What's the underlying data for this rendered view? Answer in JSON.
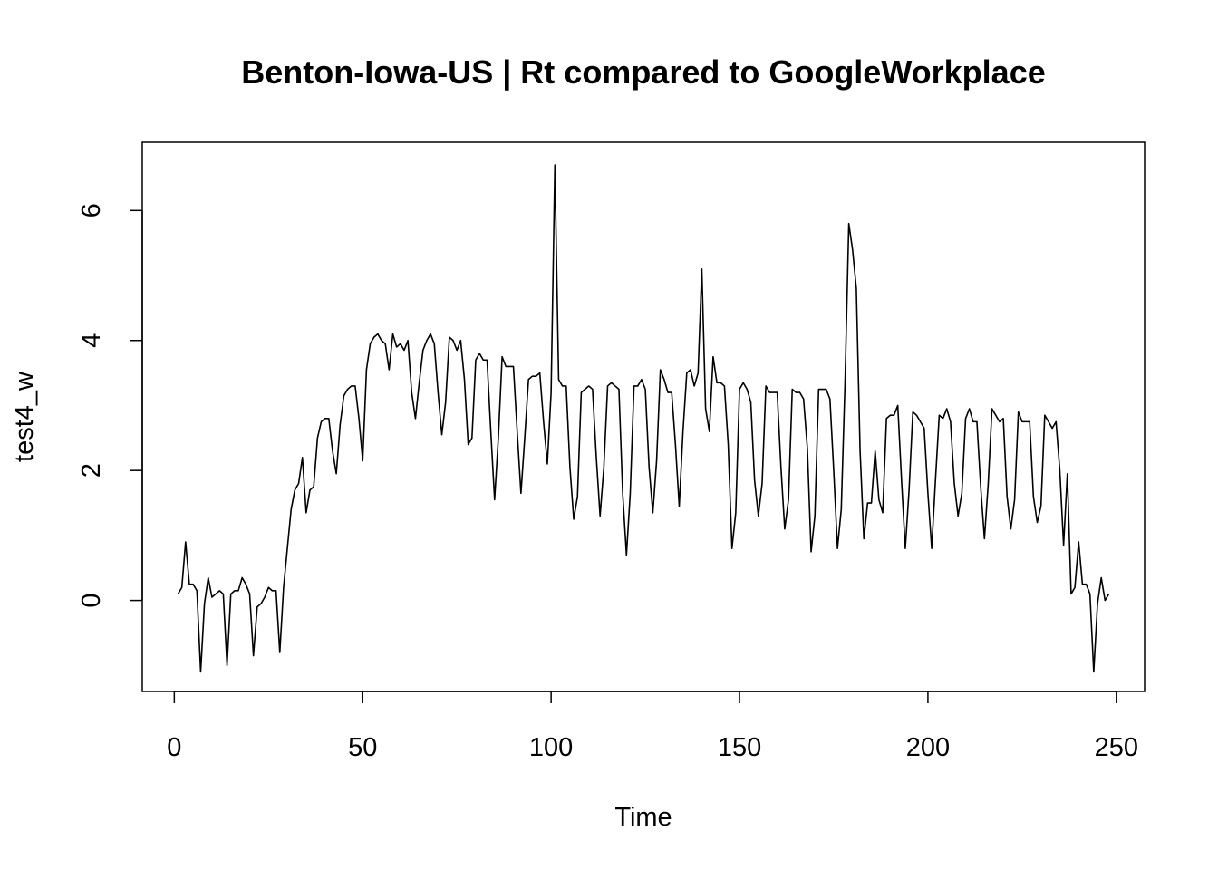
{
  "chart_data": {
    "type": "line",
    "title": "Benton-Iowa-US | Rt compared to GoogleWorkplace",
    "xlabel": "Time",
    "ylabel": "test4_w",
    "xlim": [
      -8.5,
      257.5
    ],
    "ylim": [
      -1.4,
      7.05
    ],
    "x_ticks": [
      0,
      50,
      100,
      150,
      200,
      250
    ],
    "y_ticks": [
      0,
      2,
      4,
      6
    ],
    "grid": false,
    "series": [
      {
        "color": "#000000",
        "x": [
          1,
          2,
          3,
          4,
          5,
          6,
          7,
          8,
          9,
          10,
          11,
          12,
          13,
          14,
          15,
          16,
          17,
          18,
          19,
          20,
          21,
          22,
          23,
          24,
          25,
          26,
          27,
          28,
          29,
          30,
          31,
          32,
          33,
          34,
          35,
          36,
          37,
          38,
          39,
          40,
          41,
          42,
          43,
          44,
          45,
          46,
          47,
          48,
          49,
          50,
          51,
          52,
          53,
          54,
          55,
          56,
          57,
          58,
          59,
          60,
          61,
          62,
          63,
          64,
          65,
          66,
          67,
          68,
          69,
          70,
          71,
          72,
          73,
          74,
          75,
          76,
          77,
          78,
          79,
          80,
          81,
          82,
          83,
          84,
          85,
          86,
          87,
          88,
          89,
          90,
          91,
          92,
          93,
          94,
          95,
          96,
          97,
          98,
          99,
          100,
          101,
          102,
          103,
          104,
          105,
          106,
          107,
          108,
          109,
          110,
          111,
          112,
          113,
          114,
          115,
          116,
          117,
          118,
          119,
          120,
          121,
          122,
          123,
          124,
          125,
          126,
          127,
          128,
          129,
          130,
          131,
          132,
          133,
          134,
          135,
          136,
          137,
          138,
          139,
          140,
          141,
          142,
          143,
          144,
          145,
          146,
          147,
          148,
          149,
          150,
          151,
          152,
          153,
          154,
          155,
          156,
          157,
          158,
          159,
          160,
          161,
          162,
          163,
          164,
          165,
          166,
          167,
          168,
          169,
          170,
          171,
          172,
          173,
          174,
          175,
          176,
          177,
          178,
          179,
          180,
          181,
          182,
          183,
          184,
          185,
          186,
          187,
          188,
          189,
          190,
          191,
          192,
          193,
          194,
          195,
          196,
          197,
          198,
          199,
          200,
          201,
          202,
          203,
          204,
          205,
          206,
          207,
          208,
          209,
          210,
          211,
          212,
          213,
          214,
          215,
          216,
          217,
          218,
          219,
          220,
          221,
          222,
          223,
          224,
          225,
          226,
          227,
          228,
          229,
          230,
          231,
          232,
          233,
          234,
          235,
          236,
          237,
          238,
          239,
          240,
          241,
          242,
          243,
          244,
          245,
          246,
          247,
          248
        ],
        "values": [
          0.1,
          0.2,
          0.9,
          0.25,
          0.25,
          0.15,
          -1.1,
          -0.05,
          0.35,
          0.05,
          0.1,
          0.15,
          0.1,
          -1.0,
          0.1,
          0.15,
          0.15,
          0.35,
          0.25,
          0.1,
          -0.85,
          -0.1,
          -0.05,
          0.05,
          0.2,
          0.15,
          0.15,
          -0.8,
          0.2,
          0.8,
          1.4,
          1.7,
          1.8,
          2.2,
          1.35,
          1.7,
          1.75,
          2.5,
          2.75,
          2.8,
          2.8,
          2.3,
          1.95,
          2.7,
          3.15,
          3.25,
          3.3,
          3.3,
          2.8,
          2.15,
          3.55,
          3.95,
          4.05,
          4.1,
          4.0,
          3.95,
          3.55,
          4.1,
          3.9,
          3.95,
          3.85,
          4.0,
          3.2,
          2.8,
          3.35,
          3.85,
          4.0,
          4.1,
          3.95,
          3.2,
          2.55,
          3.05,
          4.05,
          4.0,
          3.85,
          4.0,
          3.4,
          2.4,
          2.5,
          3.7,
          3.8,
          3.7,
          3.7,
          2.6,
          1.55,
          2.5,
          3.75,
          3.6,
          3.6,
          3.6,
          2.6,
          1.65,
          2.5,
          3.4,
          3.45,
          3.45,
          3.5,
          2.75,
          2.1,
          3.2,
          6.7,
          3.4,
          3.3,
          3.3,
          2.05,
          1.25,
          1.6,
          3.2,
          3.25,
          3.3,
          3.25,
          2.2,
          1.3,
          2.05,
          3.3,
          3.35,
          3.3,
          3.25,
          1.65,
          0.7,
          1.65,
          3.3,
          3.3,
          3.4,
          3.25,
          2.05,
          1.35,
          2.15,
          3.55,
          3.4,
          3.2,
          3.2,
          2.4,
          1.45,
          2.6,
          3.5,
          3.55,
          3.3,
          3.5,
          5.1,
          2.95,
          2.6,
          3.75,
          3.35,
          3.35,
          3.3,
          2.4,
          0.8,
          1.35,
          3.25,
          3.35,
          3.25,
          3.05,
          1.85,
          1.3,
          1.8,
          3.3,
          3.2,
          3.2,
          3.2,
          2.05,
          1.1,
          1.55,
          3.25,
          3.2,
          3.2,
          3.1,
          2.35,
          0.75,
          1.3,
          3.25,
          3.25,
          3.25,
          3.1,
          2.0,
          0.8,
          1.4,
          3.35,
          5.8,
          5.4,
          4.8,
          2.3,
          0.95,
          1.5,
          1.5,
          2.3,
          1.55,
          1.35,
          2.8,
          2.85,
          2.85,
          3.0,
          1.85,
          0.8,
          1.7,
          2.9,
          2.85,
          2.75,
          2.65,
          1.65,
          0.8,
          1.85,
          2.85,
          2.8,
          2.95,
          2.75,
          1.8,
          1.3,
          1.65,
          2.8,
          2.95,
          2.75,
          2.75,
          1.75,
          0.95,
          1.8,
          2.95,
          2.85,
          2.75,
          2.8,
          1.6,
          1.1,
          1.55,
          2.9,
          2.75,
          2.75,
          2.75,
          1.6,
          1.2,
          1.45,
          2.85,
          2.75,
          2.65,
          2.75,
          2.0,
          0.85,
          1.95,
          0.1,
          0.2,
          0.9,
          0.25,
          0.25,
          0.1,
          -1.1,
          -0.05,
          0.35,
          0.0,
          0.1
        ]
      }
    ]
  }
}
